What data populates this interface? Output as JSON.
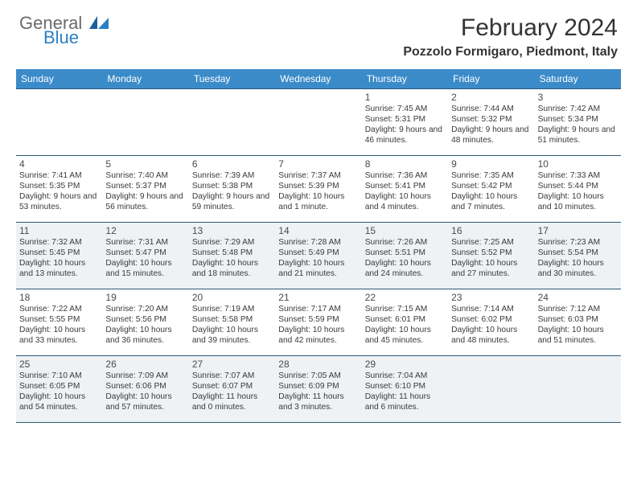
{
  "logo": {
    "word1": "General",
    "word2": "Blue"
  },
  "title": "February 2024",
  "location": "Pozzolo Formigaro, Piedmont, Italy",
  "colors": {
    "header_bg": "#3b8bc9",
    "rule": "#2b5a7a",
    "shade": "#eef2f5",
    "logo_gray": "#6b6b6b",
    "logo_blue": "#2b7fc3"
  },
  "weekdays": [
    "Sunday",
    "Monday",
    "Tuesday",
    "Wednesday",
    "Thursday",
    "Friday",
    "Saturday"
  ],
  "weeks": [
    {
      "shaded": false,
      "days": [
        null,
        null,
        null,
        null,
        {
          "n": "1",
          "sunrise": "7:45 AM",
          "sunset": "5:31 PM",
          "daylight": "9 hours and 46 minutes."
        },
        {
          "n": "2",
          "sunrise": "7:44 AM",
          "sunset": "5:32 PM",
          "daylight": "9 hours and 48 minutes."
        },
        {
          "n": "3",
          "sunrise": "7:42 AM",
          "sunset": "5:34 PM",
          "daylight": "9 hours and 51 minutes."
        }
      ]
    },
    {
      "shaded": false,
      "days": [
        {
          "n": "4",
          "sunrise": "7:41 AM",
          "sunset": "5:35 PM",
          "daylight": "9 hours and 53 minutes."
        },
        {
          "n": "5",
          "sunrise": "7:40 AM",
          "sunset": "5:37 PM",
          "daylight": "9 hours and 56 minutes."
        },
        {
          "n": "6",
          "sunrise": "7:39 AM",
          "sunset": "5:38 PM",
          "daylight": "9 hours and 59 minutes."
        },
        {
          "n": "7",
          "sunrise": "7:37 AM",
          "sunset": "5:39 PM",
          "daylight": "10 hours and 1 minute."
        },
        {
          "n": "8",
          "sunrise": "7:36 AM",
          "sunset": "5:41 PM",
          "daylight": "10 hours and 4 minutes."
        },
        {
          "n": "9",
          "sunrise": "7:35 AM",
          "sunset": "5:42 PM",
          "daylight": "10 hours and 7 minutes."
        },
        {
          "n": "10",
          "sunrise": "7:33 AM",
          "sunset": "5:44 PM",
          "daylight": "10 hours and 10 minutes."
        }
      ]
    },
    {
      "shaded": true,
      "days": [
        {
          "n": "11",
          "sunrise": "7:32 AM",
          "sunset": "5:45 PM",
          "daylight": "10 hours and 13 minutes."
        },
        {
          "n": "12",
          "sunrise": "7:31 AM",
          "sunset": "5:47 PM",
          "daylight": "10 hours and 15 minutes."
        },
        {
          "n": "13",
          "sunrise": "7:29 AM",
          "sunset": "5:48 PM",
          "daylight": "10 hours and 18 minutes."
        },
        {
          "n": "14",
          "sunrise": "7:28 AM",
          "sunset": "5:49 PM",
          "daylight": "10 hours and 21 minutes."
        },
        {
          "n": "15",
          "sunrise": "7:26 AM",
          "sunset": "5:51 PM",
          "daylight": "10 hours and 24 minutes."
        },
        {
          "n": "16",
          "sunrise": "7:25 AM",
          "sunset": "5:52 PM",
          "daylight": "10 hours and 27 minutes."
        },
        {
          "n": "17",
          "sunrise": "7:23 AM",
          "sunset": "5:54 PM",
          "daylight": "10 hours and 30 minutes."
        }
      ]
    },
    {
      "shaded": false,
      "days": [
        {
          "n": "18",
          "sunrise": "7:22 AM",
          "sunset": "5:55 PM",
          "daylight": "10 hours and 33 minutes."
        },
        {
          "n": "19",
          "sunrise": "7:20 AM",
          "sunset": "5:56 PM",
          "daylight": "10 hours and 36 minutes."
        },
        {
          "n": "20",
          "sunrise": "7:19 AM",
          "sunset": "5:58 PM",
          "daylight": "10 hours and 39 minutes."
        },
        {
          "n": "21",
          "sunrise": "7:17 AM",
          "sunset": "5:59 PM",
          "daylight": "10 hours and 42 minutes."
        },
        {
          "n": "22",
          "sunrise": "7:15 AM",
          "sunset": "6:01 PM",
          "daylight": "10 hours and 45 minutes."
        },
        {
          "n": "23",
          "sunrise": "7:14 AM",
          "sunset": "6:02 PM",
          "daylight": "10 hours and 48 minutes."
        },
        {
          "n": "24",
          "sunrise": "7:12 AM",
          "sunset": "6:03 PM",
          "daylight": "10 hours and 51 minutes."
        }
      ]
    },
    {
      "shaded": true,
      "days": [
        {
          "n": "25",
          "sunrise": "7:10 AM",
          "sunset": "6:05 PM",
          "daylight": "10 hours and 54 minutes."
        },
        {
          "n": "26",
          "sunrise": "7:09 AM",
          "sunset": "6:06 PM",
          "daylight": "10 hours and 57 minutes."
        },
        {
          "n": "27",
          "sunrise": "7:07 AM",
          "sunset": "6:07 PM",
          "daylight": "11 hours and 0 minutes."
        },
        {
          "n": "28",
          "sunrise": "7:05 AM",
          "sunset": "6:09 PM",
          "daylight": "11 hours and 3 minutes."
        },
        {
          "n": "29",
          "sunrise": "7:04 AM",
          "sunset": "6:10 PM",
          "daylight": "11 hours and 6 minutes."
        },
        null,
        null
      ]
    }
  ],
  "labels": {
    "sunrise": "Sunrise:",
    "sunset": "Sunset:",
    "daylight": "Daylight:"
  }
}
